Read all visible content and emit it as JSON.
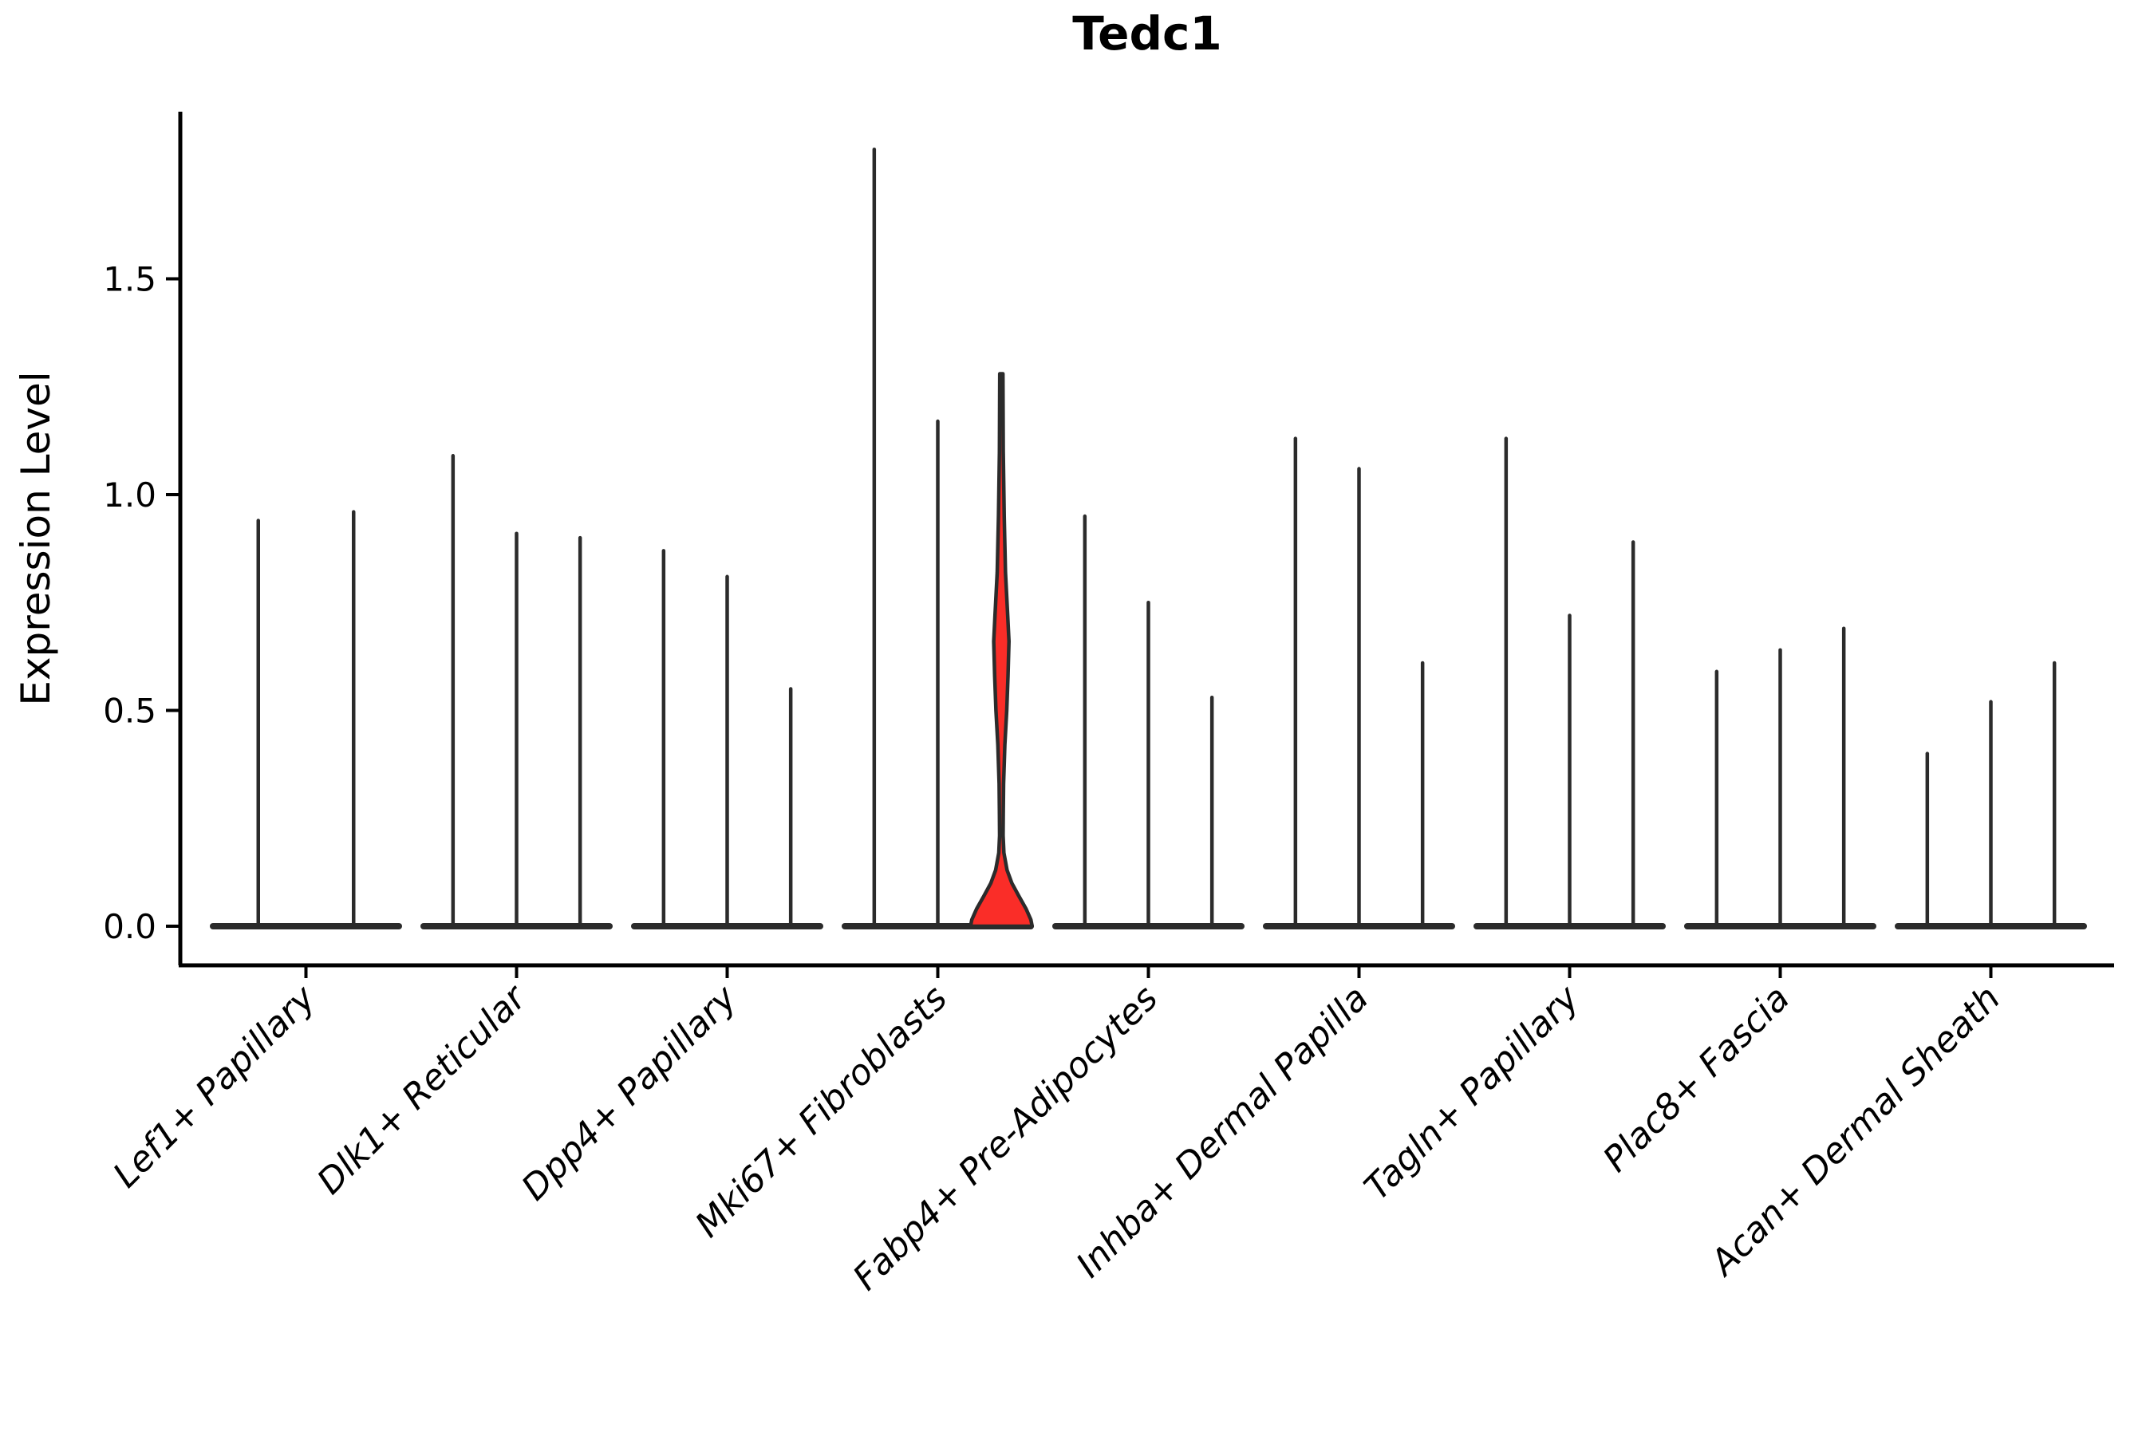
{
  "chart_data": {
    "type": "violin",
    "title": "Tedc1",
    "ylabel": "Expression Level",
    "xlabel": "",
    "ytick_labels": [
      "0.0",
      "0.5",
      "1.0",
      "1.5"
    ],
    "ylim": [
      -0.09,
      1.89
    ],
    "grid": false,
    "legend_position": "none",
    "line_color": "#2b2b2b",
    "axis_color": "#000000",
    "highlight_color": "#fa2d28",
    "categories": [
      "Lef1+ Papillary",
      "Dlk1+ Reticular",
      "Dpp4+ Papillary",
      "Mki67+ Fibroblasts",
      "Fabp4+ Pre-Adipocytes",
      "Inhba+ Dermal Papilla",
      "Tagln+ Papillary",
      "Plac8+ Fascia",
      "Acan+ Dermal Sheath"
    ],
    "groups": [
      {
        "label": "Lef1+ Papillary",
        "violins": [
          {
            "max": 0.94
          },
          {
            "max": 0.96
          }
        ]
      },
      {
        "label": "Dlk1+ Reticular",
        "violins": [
          {
            "max": 1.09
          },
          {
            "max": 0.91
          },
          {
            "max": 0.9
          }
        ]
      },
      {
        "label": "Dpp4+ Papillary",
        "violins": [
          {
            "max": 0.87
          },
          {
            "max": 0.81
          },
          {
            "max": 0.55
          }
        ]
      },
      {
        "label": "Mki67+ Fibroblasts",
        "violins": [
          {
            "max": 1.8
          },
          {
            "max": 1.17
          },
          {
            "max": 1.28,
            "highlight": true
          }
        ]
      },
      {
        "label": "Fabp4+ Pre-Adipocytes",
        "violins": [
          {
            "max": 0.95
          },
          {
            "max": 0.75
          },
          {
            "max": 0.53
          }
        ]
      },
      {
        "label": "Inhba+ Dermal Papilla",
        "violins": [
          {
            "max": 1.13
          },
          {
            "max": 1.06
          },
          {
            "max": 0.61
          }
        ]
      },
      {
        "label": "Tagln+ Papillary",
        "violins": [
          {
            "max": 1.13
          },
          {
            "max": 0.72
          },
          {
            "max": 0.89
          }
        ]
      },
      {
        "label": "Plac8+ Fascia",
        "violins": [
          {
            "max": 0.59
          },
          {
            "max": 0.64
          },
          {
            "max": 0.69
          }
        ]
      },
      {
        "label": "Acan+ Dermal Sheath",
        "violins": [
          {
            "max": 0.4
          },
          {
            "max": 0.52
          },
          {
            "max": 0.61
          }
        ]
      }
    ],
    "highlight_profile": [
      [
        1.28,
        0.05
      ],
      [
        1.1,
        0.06
      ],
      [
        0.95,
        0.09
      ],
      [
        0.82,
        0.13
      ],
      [
        0.72,
        0.2
      ],
      [
        0.66,
        0.24
      ],
      [
        0.58,
        0.21
      ],
      [
        0.5,
        0.17
      ],
      [
        0.42,
        0.11
      ],
      [
        0.33,
        0.07
      ],
      [
        0.26,
        0.06
      ],
      [
        0.21,
        0.055
      ],
      [
        0.17,
        0.08
      ],
      [
        0.13,
        0.18
      ],
      [
        0.1,
        0.33
      ],
      [
        0.07,
        0.55
      ],
      [
        0.04,
        0.78
      ],
      [
        0.015,
        0.93
      ],
      [
        0.0,
        0.97
      ]
    ]
  }
}
